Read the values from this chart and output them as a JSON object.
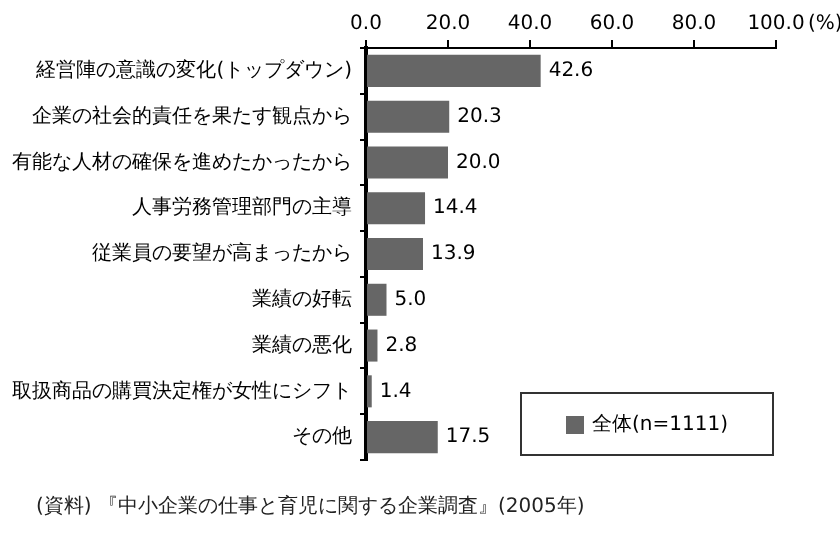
{
  "chart_data": {
    "type": "bar",
    "orientation": "horizontal",
    "xlabel": "(%)",
    "categories": [
      "経営陣の意識の変化(トップダウン)",
      "企業の社会的責任を果たす観点から",
      "有能な人材の確保を進めたかったから",
      "人事労務管理部門の主導",
      "従業員の要望が高まったから",
      "業績の好転",
      "業績の悪化",
      "取扱商品の購買決定権が女性にシフト",
      "その他"
    ],
    "series": [
      {
        "name": "全体(n=1111)",
        "color": "#666666",
        "values": [
          42.6,
          20.3,
          20.0,
          14.4,
          13.9,
          5.0,
          2.8,
          1.4,
          17.5
        ],
        "value_labels": [
          "42.6",
          "20.3",
          "20.0",
          "14.4",
          "13.9",
          "5.0",
          "2.8",
          "1.4",
          "17.5"
        ]
      }
    ],
    "xlim": [
      0,
      100
    ],
    "xticks": [
      {
        "value": 0,
        "label": "0.0"
      },
      {
        "value": 20,
        "label": "20.0"
      },
      {
        "value": 40,
        "label": "40.0"
      },
      {
        "value": 60,
        "label": "60.0"
      },
      {
        "value": 80,
        "label": "80.0"
      },
      {
        "value": 100,
        "label": "100.0"
      }
    ],
    "grid": false,
    "legend": "bottom right",
    "annotations": [
      "(資料) 『中小企業の仕事と育児に関する企業調査』(2005年)"
    ]
  }
}
